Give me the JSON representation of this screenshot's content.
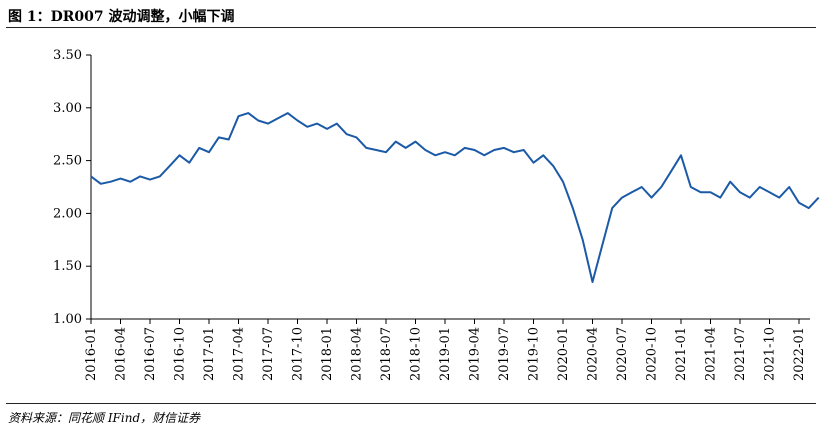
{
  "header": {
    "title": "图 1：DR007 波动调整，小幅下调"
  },
  "footer": {
    "source": "资料来源：同花顺 IFind，财信证券"
  },
  "colors": {
    "series": "#1b5aa6",
    "axis": "#000000",
    "rule": "#222222"
  },
  "chart_data": {
    "type": "line",
    "title": "图 1：DR007 波动调整，小幅下调",
    "xlabel": "",
    "ylabel": "",
    "ylim": [
      1.0,
      3.5
    ],
    "yticks": [
      "1.00",
      "1.50",
      "2.00",
      "2.50",
      "3.00",
      "3.50"
    ],
    "xtick_labels": [
      "2016-01",
      "2016-04",
      "2016-07",
      "2016-10",
      "2017-01",
      "2017-04",
      "2017-07",
      "2017-10",
      "2018-01",
      "2018-04",
      "2018-07",
      "2018-10",
      "2019-01",
      "2019-04",
      "2019-07",
      "2019-10",
      "2020-01",
      "2020-04",
      "2020-07",
      "2020-10",
      "2021-01",
      "2021-04",
      "2021-07",
      "2021-10",
      "2022-01"
    ],
    "grid": false,
    "legend": "none",
    "series": [
      {
        "x": [
          "2016-01",
          "2016-02",
          "2016-03",
          "2016-04",
          "2016-05",
          "2016-06",
          "2016-07",
          "2016-08",
          "2016-09",
          "2016-10",
          "2016-11",
          "2016-12",
          "2017-01",
          "2017-02",
          "2017-03",
          "2017-04",
          "2017-05",
          "2017-06",
          "2017-07",
          "2017-08",
          "2017-09",
          "2017-10",
          "2017-11",
          "2017-12",
          "2018-01",
          "2018-02",
          "2018-03",
          "2018-04",
          "2018-05",
          "2018-06",
          "2018-07",
          "2018-08",
          "2018-09",
          "2018-10",
          "2018-11",
          "2018-12",
          "2019-01",
          "2019-02",
          "2019-03",
          "2019-04",
          "2019-05",
          "2019-06",
          "2019-07",
          "2019-08",
          "2019-09",
          "2019-10",
          "2019-11",
          "2019-12",
          "2020-01",
          "2020-02",
          "2020-03",
          "2020-04",
          "2020-05",
          "2020-06",
          "2020-07",
          "2020-08",
          "2020-09",
          "2020-10",
          "2020-11",
          "2020-12",
          "2021-01",
          "2021-02",
          "2021-03",
          "2021-04",
          "2021-05",
          "2021-06",
          "2021-07",
          "2021-08",
          "2021-09",
          "2021-10",
          "2021-11",
          "2021-12",
          "2022-01",
          "2022-02",
          "2022-03"
        ],
        "values": [
          2.35,
          2.28,
          2.3,
          2.33,
          2.3,
          2.35,
          2.32,
          2.35,
          2.45,
          2.55,
          2.48,
          2.62,
          2.58,
          2.72,
          2.7,
          2.92,
          2.95,
          2.88,
          2.85,
          2.9,
          2.95,
          2.88,
          2.82,
          2.85,
          2.8,
          2.85,
          2.75,
          2.72,
          2.62,
          2.6,
          2.58,
          2.68,
          2.62,
          2.68,
          2.6,
          2.55,
          2.58,
          2.55,
          2.62,
          2.6,
          2.55,
          2.6,
          2.62,
          2.58,
          2.6,
          2.48,
          2.55,
          2.45,
          2.3,
          2.05,
          1.75,
          1.35,
          1.7,
          2.05,
          2.15,
          2.2,
          2.25,
          2.15,
          2.25,
          2.4,
          2.55,
          2.25,
          2.2,
          2.2,
          2.15,
          2.3,
          2.2,
          2.15,
          2.25,
          2.2,
          2.15,
          2.25,
          2.1,
          2.05,
          2.15
        ]
      }
    ]
  }
}
